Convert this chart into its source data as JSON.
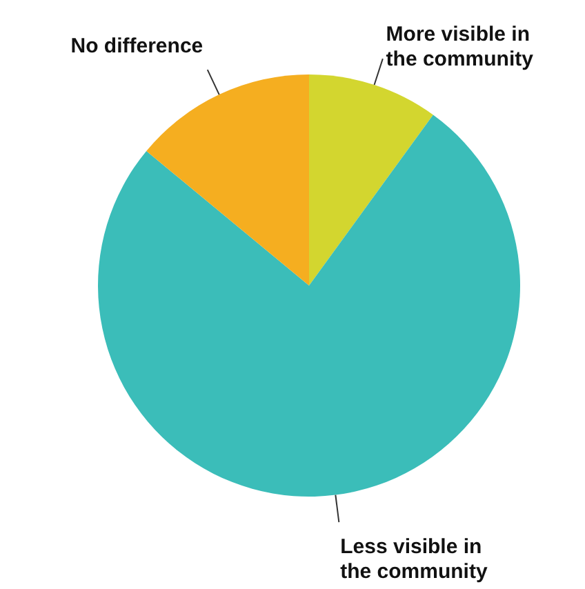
{
  "chart_data": {
    "type": "pie",
    "categories": [
      "More visible in the community",
      "Less visible in the community",
      "No difference"
    ],
    "values": [
      10,
      76,
      14
    ],
    "colors": [
      "#d3d62f",
      "#3bbdb9",
      "#f5ae20"
    ]
  }
}
